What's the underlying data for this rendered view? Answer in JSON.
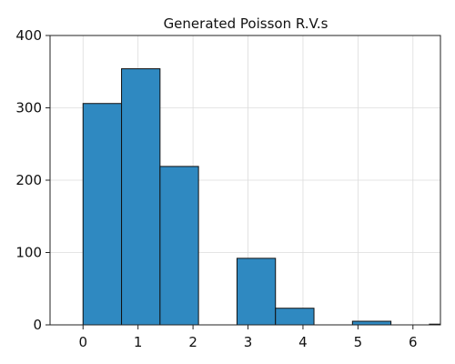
{
  "chart_data": {
    "type": "bar",
    "title": "Generated Poisson R.V.s",
    "xlabel": "",
    "ylabel": "",
    "xlim": [
      -0.6,
      6.5
    ],
    "ylim": [
      0,
      400
    ],
    "x_ticks": [
      0,
      1,
      2,
      3,
      4,
      5,
      6
    ],
    "y_ticks": [
      0,
      100,
      200,
      300,
      400
    ],
    "grid": true,
    "bar_color": "#2f89c1",
    "bin_width": 0.7,
    "bins": [
      {
        "x0": 0.0,
        "x1": 0.7,
        "value": 306
      },
      {
        "x0": 0.7,
        "x1": 1.4,
        "value": 354
      },
      {
        "x0": 1.4,
        "x1": 2.1,
        "value": 219
      },
      {
        "x0": 2.1,
        "x1": 2.8,
        "value": 0
      },
      {
        "x0": 2.8,
        "x1": 3.5,
        "value": 92
      },
      {
        "x0": 3.5,
        "x1": 4.2,
        "value": 23
      },
      {
        "x0": 4.2,
        "x1": 4.9,
        "value": 0
      },
      {
        "x0": 4.9,
        "x1": 5.6,
        "value": 5
      },
      {
        "x0": 5.6,
        "x1": 6.3,
        "value": 0
      },
      {
        "x0": 6.3,
        "x1": 7.0,
        "value": 1
      }
    ]
  }
}
